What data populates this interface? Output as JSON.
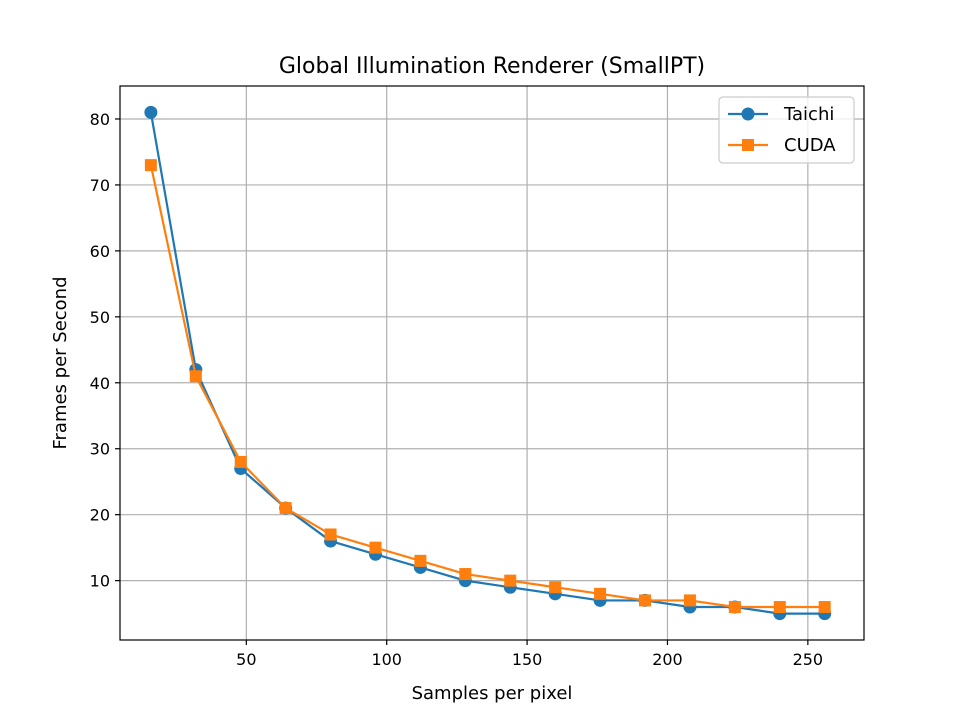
{
  "chart_data": {
    "type": "line",
    "title": "Global Illumination Renderer (SmallPT)",
    "xlabel": "Samples per pixel",
    "ylabel": "Frames per Second",
    "xlim": [
      5,
      270
    ],
    "ylim": [
      1,
      85
    ],
    "xticks": [
      50,
      100,
      150,
      200,
      250
    ],
    "yticks": [
      10,
      20,
      30,
      40,
      50,
      60,
      70,
      80
    ],
    "grid": true,
    "legend_position": "top-right",
    "x": [
      16,
      32,
      48,
      64,
      80,
      96,
      112,
      128,
      144,
      160,
      176,
      192,
      208,
      224,
      240,
      256
    ],
    "series": [
      {
        "name": "Taichi",
        "marker": "circle",
        "color": "#1f77b4",
        "values": [
          81,
          42,
          27,
          21,
          16,
          14,
          12,
          10,
          9,
          8,
          7,
          7,
          6,
          6,
          5,
          5
        ]
      },
      {
        "name": "CUDA",
        "marker": "square",
        "color": "#ff7f0e",
        "values": [
          73,
          41,
          28,
          21,
          17,
          15,
          13,
          11,
          10,
          9,
          8,
          7,
          7,
          6,
          6,
          6
        ]
      }
    ]
  }
}
